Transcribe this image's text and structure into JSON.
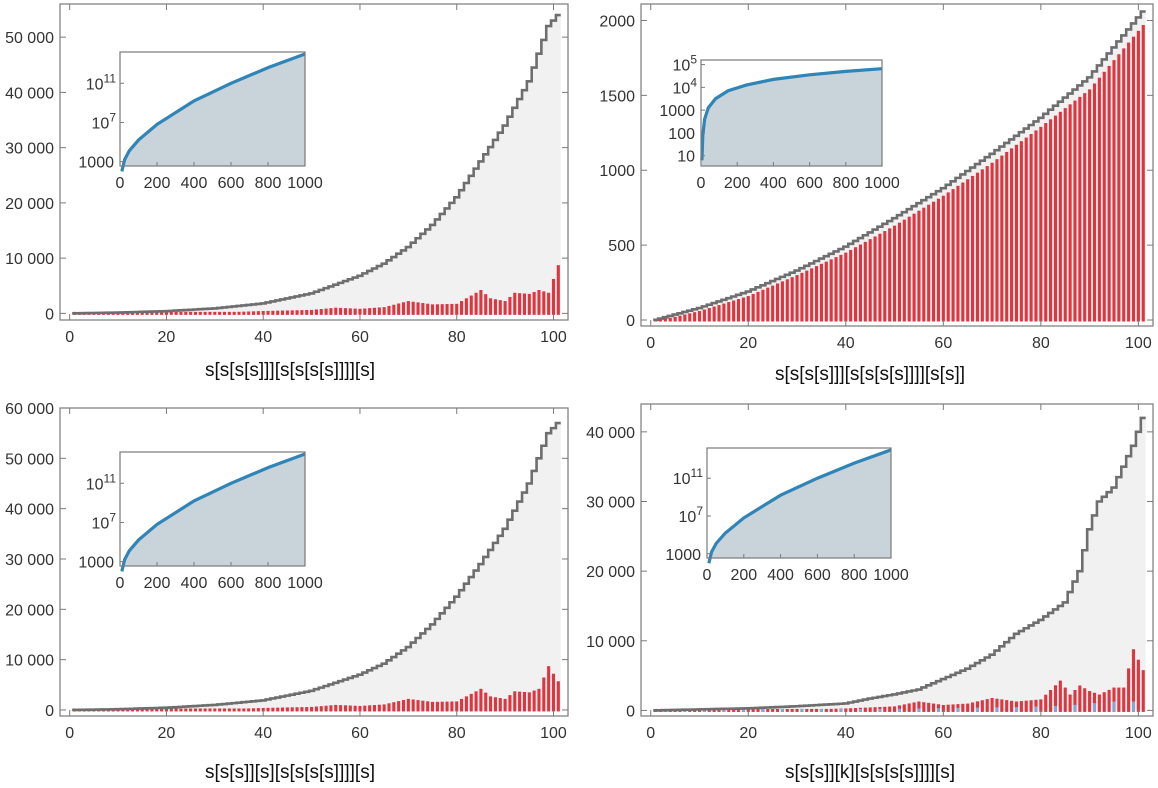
{
  "colors": {
    "frame": "#7a7a7a",
    "step": "#6e6e6e",
    "bar_red": "#e0353f",
    "bar_blue": "#7fa8dc",
    "main_fill": "#f1f1f1",
    "inset_fill": "#c9d3da",
    "inset_line": "#2f84b8",
    "tick_text": "#333333"
  },
  "chart_data": [
    {
      "id": "top-left",
      "type": "bar",
      "title": "",
      "xlabel": "s[s[s[s]]][s[s[s[s]]]][s]",
      "ylabel": "",
      "xlim": [
        -2,
        103
      ],
      "ylim": [
        -1200,
        56000
      ],
      "xticks": [
        0,
        20,
        40,
        60,
        80,
        100
      ],
      "yticks": [
        0,
        10000,
        20000,
        30000,
        40000,
        50000
      ],
      "ytick_labels": [
        "0",
        "10 000",
        "20 000",
        "30 000",
        "40 000",
        "50 000"
      ],
      "grid": false,
      "legend": "none",
      "series": [
        {
          "role": "cumulative-step",
          "x": [
            1,
            10,
            20,
            30,
            40,
            50,
            60,
            65,
            70,
            75,
            80,
            85,
            90,
            95,
            99,
            101
          ],
          "y": [
            0,
            150,
            400,
            900,
            1800,
            3600,
            6800,
            9000,
            12000,
            16000,
            21000,
            27500,
            34000,
            42000,
            52000,
            54000
          ]
        },
        {
          "role": "counts",
          "x": [
            1,
            10,
            20,
            30,
            40,
            50,
            55,
            60,
            65,
            70,
            75,
            80,
            82,
            85,
            87,
            90,
            92,
            95,
            97,
            99,
            101
          ],
          "y": [
            0,
            100,
            200,
            400,
            700,
            900,
            1300,
            1100,
            1400,
            2500,
            1900,
            2000,
            3000,
            4500,
            3000,
            2500,
            4000,
            3800,
            4500,
            4000,
            9000
          ]
        }
      ],
      "inset": {
        "type": "area",
        "yscale": "log",
        "xlim": [
          0,
          1000
        ],
        "xticks": [
          0,
          200,
          400,
          600,
          800,
          1000
        ],
        "yticks": [
          "1000",
          "10^7",
          "10^11"
        ],
        "ytick_exponents": [
          3,
          7,
          11
        ],
        "x": [
          10,
          25,
          50,
          100,
          200,
          400,
          600,
          800,
          1000
        ],
        "y_log10": [
          2.0,
          3.2,
          4.1,
          5.2,
          6.8,
          9.2,
          11.0,
          12.6,
          14.0
        ]
      }
    },
    {
      "id": "top-right",
      "type": "bar",
      "title": "",
      "xlabel": "s[s[s[s]]][s[s[s[s]]]][s[s]]",
      "ylabel": "",
      "xlim": [
        -2,
        103
      ],
      "ylim": [
        -40,
        2110
      ],
      "xticks": [
        0,
        20,
        40,
        60,
        80,
        100
      ],
      "yticks": [
        0,
        500,
        1000,
        1500,
        2000
      ],
      "ytick_labels": [
        "0",
        "500",
        "1000",
        "1500",
        "2000"
      ],
      "grid": false,
      "legend": "none",
      "series": [
        {
          "role": "cumulative-step",
          "x": [
            1,
            10,
            20,
            30,
            40,
            50,
            60,
            70,
            80,
            90,
            101
          ],
          "y": [
            1,
            80,
            190,
            330,
            490,
            680,
            880,
            1110,
            1350,
            1620,
            2060
          ]
        },
        {
          "role": "counts",
          "x": [
            1,
            10,
            20,
            30,
            40,
            50,
            60,
            70,
            80,
            90,
            101
          ],
          "y": [
            1,
            70,
            170,
            310,
            460,
            640,
            840,
            1060,
            1300,
            1550,
            1980
          ]
        }
      ],
      "inset": {
        "type": "area",
        "yscale": "log",
        "xlim": [
          0,
          1000
        ],
        "xticks": [
          0,
          200,
          400,
          600,
          800,
          1000
        ],
        "yticks": [
          "10",
          "100",
          "1000",
          "10^4",
          "10^5"
        ],
        "ytick_exponents": [
          1,
          2,
          3,
          4,
          5
        ],
        "x": [
          5,
          10,
          20,
          40,
          80,
          150,
          250,
          400,
          600,
          800,
          1000
        ],
        "y_log10": [
          0.8,
          1.9,
          2.6,
          3.1,
          3.5,
          3.85,
          4.1,
          4.35,
          4.55,
          4.7,
          4.82
        ]
      }
    },
    {
      "id": "bottom-left",
      "type": "bar",
      "title": "",
      "xlabel": "s[s[s]][s][s[s[s[s]]]][s]",
      "ylabel": "",
      "xlim": [
        -2,
        103
      ],
      "ylim": [
        -1200,
        60000
      ],
      "xticks": [
        0,
        20,
        40,
        60,
        80,
        100
      ],
      "yticks": [
        0,
        10000,
        20000,
        30000,
        40000,
        50000,
        60000
      ],
      "ytick_labels": [
        "0",
        "10 000",
        "20 000",
        "30 000",
        "40 000",
        "50 000",
        "60 000"
      ],
      "grid": false,
      "legend": "none",
      "series": [
        {
          "role": "cumulative-step",
          "x": [
            1,
            10,
            20,
            30,
            40,
            50,
            60,
            65,
            70,
            75,
            80,
            85,
            90,
            95,
            99,
            101
          ],
          "y": [
            0,
            150,
            450,
            1000,
            1900,
            3800,
            7000,
            9200,
            12500,
            17000,
            22500,
            29000,
            36000,
            45000,
            55000,
            57000
          ]
        },
        {
          "role": "counts",
          "x": [
            1,
            10,
            20,
            30,
            40,
            50,
            55,
            60,
            65,
            70,
            75,
            80,
            82,
            85,
            87,
            90,
            92,
            95,
            97,
            99,
            101
          ],
          "y": [
            0,
            100,
            200,
            400,
            700,
            900,
            1300,
            1100,
            1400,
            2500,
            1900,
            2000,
            3000,
            4500,
            3000,
            2500,
            4000,
            3800,
            4500,
            9000,
            6000
          ]
        }
      ],
      "inset": {
        "type": "area",
        "yscale": "log",
        "xlim": [
          0,
          1000
        ],
        "xticks": [
          0,
          200,
          400,
          600,
          800,
          1000
        ],
        "yticks": [
          "1000",
          "10^7",
          "10^11"
        ],
        "ytick_exponents": [
          3,
          7,
          11
        ],
        "x": [
          10,
          25,
          50,
          100,
          200,
          400,
          600,
          800,
          1000
        ],
        "y_log10": [
          2.0,
          3.2,
          4.1,
          5.2,
          6.8,
          9.2,
          11.0,
          12.6,
          14.0
        ]
      }
    },
    {
      "id": "bottom-right",
      "type": "bar",
      "title": "",
      "xlabel": "s[s[s]][k][s[s[s[s]]]][s]",
      "ylabel": "",
      "xlim": [
        -2,
        103
      ],
      "ylim": [
        -800,
        44000
      ],
      "xticks": [
        0,
        20,
        40,
        60,
        80,
        100
      ],
      "yticks": [
        0,
        10000,
        20000,
        30000,
        40000
      ],
      "ytick_labels": [
        "0",
        "10 000",
        "20 000",
        "30 000",
        "40 000"
      ],
      "grid": false,
      "legend": "none",
      "series": [
        {
          "role": "cumulative-step",
          "x": [
            1,
            10,
            20,
            30,
            40,
            45,
            50,
            55,
            60,
            65,
            70,
            75,
            80,
            85,
            88,
            90,
            92,
            95,
            97,
            99,
            101
          ],
          "y": [
            0,
            150,
            300,
            600,
            1000,
            1700,
            2300,
            3000,
            4500,
            6000,
            8000,
            11000,
            13000,
            15500,
            20000,
            26000,
            30000,
            32000,
            35000,
            38000,
            42000
          ]
        },
        {
          "role": "counts",
          "x": [
            1,
            10,
            20,
            30,
            40,
            50,
            55,
            60,
            65,
            70,
            75,
            80,
            84,
            86,
            88,
            90,
            92,
            95,
            97,
            99,
            101
          ],
          "y": [
            0,
            100,
            200,
            300,
            500,
            800,
            1500,
            1000,
            1200,
            2000,
            1500,
            1800,
            4500,
            2500,
            3800,
            3000,
            2500,
            3500,
            3500,
            9000,
            6000
          ]
        },
        {
          "role": "counts-secondary",
          "x": [
            5,
            15,
            25,
            35,
            45,
            55,
            65,
            75,
            85,
            90,
            95
          ],
          "y": [
            80,
            120,
            200,
            250,
            400,
            500,
            600,
            700,
            900,
            1200,
            1500
          ]
        }
      ],
      "inset": {
        "type": "area",
        "yscale": "log",
        "xlim": [
          0,
          1000
        ],
        "xticks": [
          0,
          200,
          400,
          600,
          800,
          1000
        ],
        "yticks": [
          "1000",
          "10^7",
          "10^11"
        ],
        "ytick_exponents": [
          3,
          7,
          11
        ],
        "x": [
          10,
          25,
          50,
          100,
          200,
          400,
          600,
          800,
          1000
        ],
        "y_log10": [
          2.0,
          3.2,
          4.1,
          5.2,
          6.8,
          9.2,
          11.0,
          12.6,
          14.0
        ]
      }
    }
  ]
}
